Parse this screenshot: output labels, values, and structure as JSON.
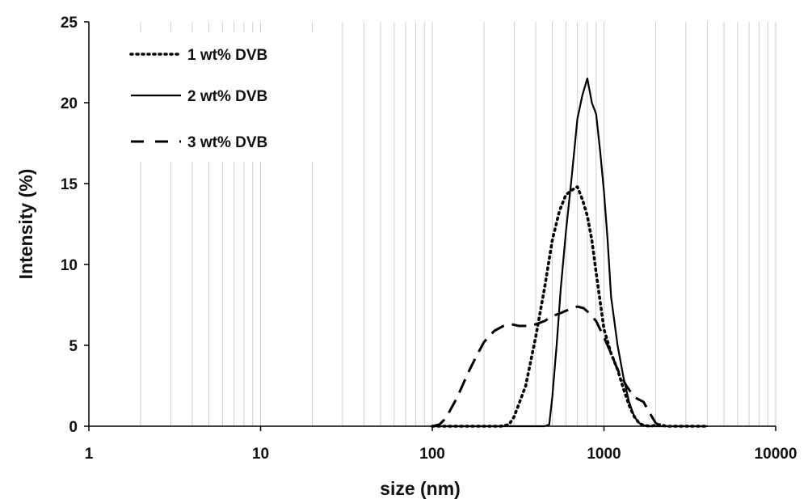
{
  "chart_data": {
    "type": "line",
    "title": "",
    "xlabel": "size (nm)",
    "ylabel": "Intensity (%)",
    "x_scale": "log",
    "xlim": [
      1,
      10000
    ],
    "ylim": [
      0,
      25
    ],
    "x_ticks": [
      "1",
      "10",
      "100",
      "1000",
      "10000"
    ],
    "y_ticks": [
      "0",
      "5",
      "10",
      "15",
      "20",
      "25"
    ],
    "grid": "vertical minor lines",
    "legend_position": "top-left",
    "series": [
      {
        "name": "1 wt% DVB",
        "style": "dotted",
        "x": [
          100,
          150,
          200,
          250,
          280,
          300,
          350,
          400,
          450,
          500,
          550,
          600,
          650,
          700,
          750,
          800,
          850,
          900,
          1000,
          1100,
          1200,
          1300,
          1400,
          1500,
          1600,
          1700,
          1800,
          1900,
          2100,
          2300,
          2600,
          3000,
          4000
        ],
        "y": [
          0,
          0,
          0,
          0,
          0.1,
          0.6,
          2.5,
          5.5,
          8.5,
          11.5,
          13.3,
          14.3,
          14.6,
          14.8,
          14.0,
          13.0,
          11.5,
          9.5,
          6.0,
          4.5,
          3.5,
          2.3,
          1.3,
          0.6,
          0.2,
          0.05,
          0.02,
          0.02,
          0.1,
          0,
          0,
          0,
          0
        ]
      },
      {
        "name": "2 wt% DVB",
        "style": "solid",
        "x": [
          100,
          300,
          450,
          480,
          500,
          530,
          560,
          600,
          650,
          700,
          750,
          800,
          850,
          900,
          950,
          1000,
          1050,
          1100,
          1200,
          1300,
          1400,
          1500,
          1600,
          1700,
          1800,
          2000,
          3000,
          4000
        ],
        "y": [
          0,
          0,
          0,
          0.1,
          1.8,
          5.0,
          8.5,
          12.0,
          15.5,
          19.0,
          20.5,
          21.5,
          20.0,
          19.3,
          17.0,
          14.5,
          11.5,
          8.0,
          5.0,
          3.0,
          1.5,
          0.6,
          0.2,
          0.05,
          0,
          0,
          0,
          0
        ]
      },
      {
        "name": "3 wt% DVB",
        "style": "dashed",
        "x": [
          100,
          110,
          120,
          140,
          160,
          180,
          200,
          230,
          260,
          290,
          320,
          360,
          400,
          450,
          500,
          560,
          620,
          700,
          760,
          820,
          900,
          1000,
          1100,
          1200,
          1350,
          1500,
          1700,
          1850,
          2000,
          2150
        ],
        "y": [
          0,
          0.1,
          0.5,
          1.8,
          3.2,
          4.3,
          5.2,
          5.9,
          6.2,
          6.3,
          6.2,
          6.2,
          6.3,
          6.5,
          6.8,
          7.0,
          7.2,
          7.4,
          7.3,
          7.0,
          6.5,
          5.5,
          4.5,
          3.5,
          2.5,
          1.8,
          1.5,
          0.8,
          0.2,
          0
        ]
      }
    ]
  }
}
